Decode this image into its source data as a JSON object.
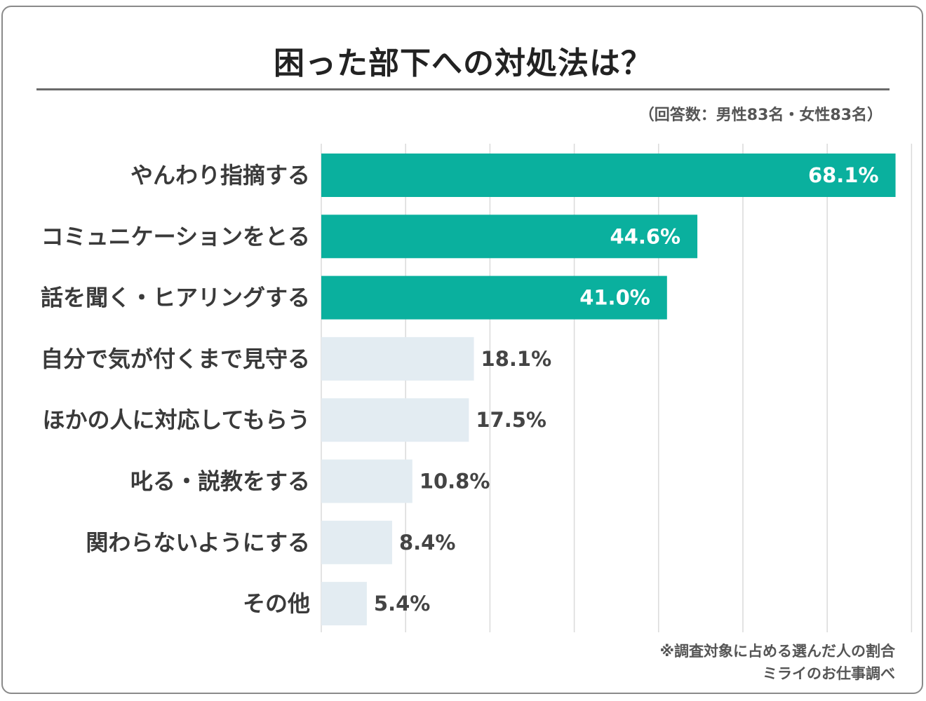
{
  "title": "困った部下への対処法は？",
  "respondents": "（回答数：男性83名・女性83名）",
  "footnote": "※調査対象に占める選んだ人の割合",
  "source": "ミライのお仕事調べ",
  "colors": {
    "highlight": "#0ab09e",
    "normal": "#e3ecf2",
    "grid": "#dadada"
  },
  "chart_data": {
    "type": "bar",
    "orientation": "horizontal",
    "title": "困った部下への対処法は？",
    "categories": [
      "やんわり指摘する",
      "コミュニケーションをとる",
      "話を聞く・ヒアリングする",
      "自分で気が付くまで見守る",
      "ほかの人に対応してもらう",
      "叱る・説教をする",
      "関わらないようにする",
      "その他"
    ],
    "values": [
      68.1,
      44.6,
      41.0,
      18.1,
      17.5,
      10.8,
      8.4,
      5.4
    ],
    "labels": [
      "68.1%",
      "44.6%",
      "41.0%",
      "18.1%",
      "17.5%",
      "10.8%",
      "8.4%",
      "5.4%"
    ],
    "highlighted": [
      true,
      true,
      true,
      false,
      false,
      false,
      false,
      false
    ],
    "unit": "%",
    "xlim": [
      0,
      70
    ],
    "grid": true,
    "legend": "none"
  }
}
